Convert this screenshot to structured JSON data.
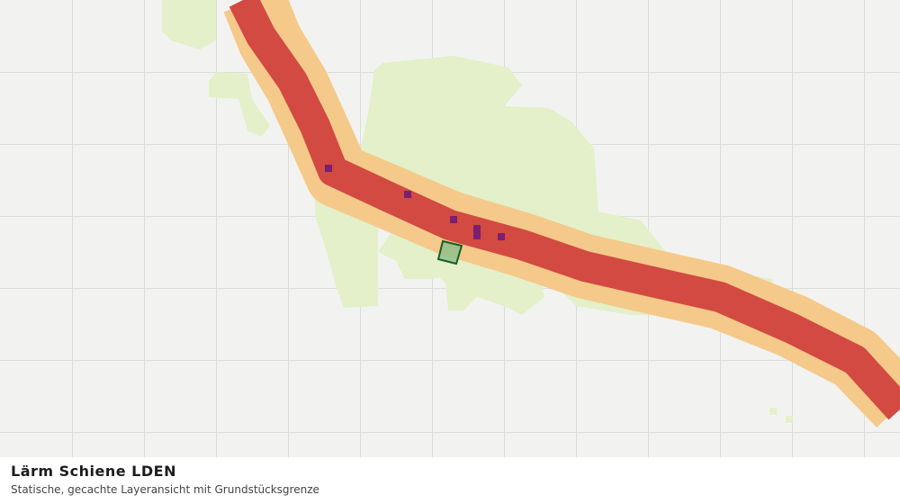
{
  "legend": {
    "title": "Lärm Schiene LDEN",
    "subtitle": "Statische, gecachte Layeransicht mit Grundstücksgrenze"
  }
}
